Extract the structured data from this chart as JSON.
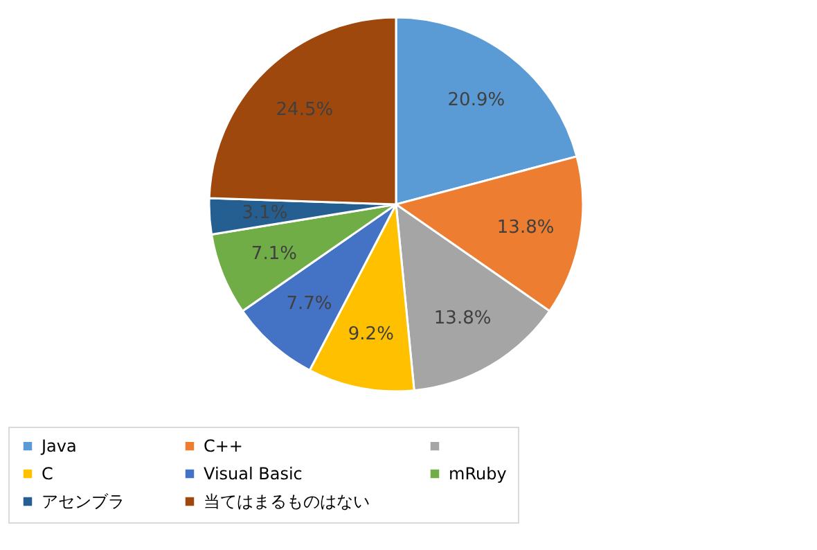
{
  "chart_data": {
    "type": "pie",
    "categories": [
      "Java",
      "C++",
      null,
      "C",
      "Visual Basic",
      "mRuby",
      "アセンブラ",
      "当てはまるものはない"
    ],
    "values": [
      20.9,
      13.8,
      13.8,
      9.2,
      7.7,
      7.1,
      3.1,
      24.5
    ],
    "value_labels": [
      "20.9%",
      "13.8%",
      "13.8%",
      "9.2%",
      "7.7%",
      "7.1%",
      "3.1%",
      "24.5%"
    ],
    "colors": [
      "#5b9bd5",
      "#ed7d31",
      "#a5a5a5",
      "#ffc000",
      "#4472c4",
      "#70ad47",
      "#255e91",
      "#9e480e"
    ],
    "legend": "bottom"
  }
}
